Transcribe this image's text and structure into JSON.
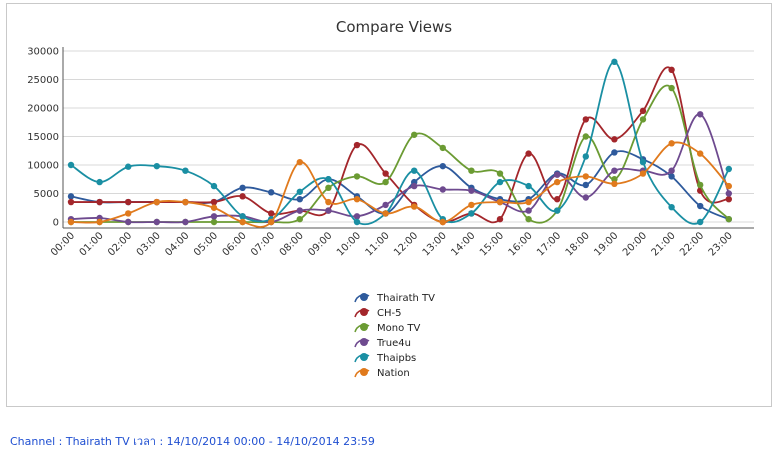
{
  "chart_data": {
    "type": "line",
    "title": "Compare Views",
    "categories": [
      "00:00",
      "01:00",
      "02:00",
      "03:00",
      "04:00",
      "05:00",
      "06:00",
      "07:00",
      "08:00",
      "09:00",
      "10:00",
      "11:00",
      "12:00",
      "13:00",
      "14:00",
      "15:00",
      "16:00",
      "17:00",
      "18:00",
      "19:00",
      "20:00",
      "21:00",
      "22:00",
      "23:00"
    ],
    "y_ticks": [
      0,
      5000,
      10000,
      15000,
      20000,
      25000,
      30000
    ],
    "ylim": [
      0,
      30000
    ],
    "grid": true,
    "legend_position": "bottom-center",
    "series": [
      {
        "name": "Thairath TV",
        "color": "#2e5a9c",
        "values": [
          4500,
          3500,
          3500,
          3500,
          3500,
          3500,
          6000,
          5200,
          4000,
          7500,
          4500,
          1500,
          7000,
          9800,
          6000,
          4000,
          4000,
          8500,
          6500,
          12200,
          11000,
          8000,
          2800,
          500
        ]
      },
      {
        "name": "CH-5",
        "color": "#a3262b",
        "values": [
          3500,
          3500,
          3500,
          3500,
          3500,
          3500,
          4500,
          1500,
          2000,
          2000,
          13500,
          8500,
          3000,
          0,
          1500,
          500,
          12000,
          4000,
          18000,
          14500,
          19500,
          26700,
          5500,
          4000
        ]
      },
      {
        "name": "Mono TV",
        "color": "#6b9b33",
        "values": [
          0,
          0,
          0,
          0,
          0,
          0,
          0,
          0,
          500,
          6000,
          8000,
          7000,
          15300,
          13000,
          9000,
          8500,
          500,
          2000,
          15000,
          7500,
          18000,
          23500,
          6500,
          500
        ]
      },
      {
        "name": "True4u",
        "color": "#6e4a8f",
        "values": [
          500,
          700,
          0,
          0,
          0,
          1000,
          1000,
          0,
          2000,
          2000,
          1000,
          3000,
          6300,
          5700,
          5500,
          3500,
          2000,
          8300,
          4300,
          9000,
          9000,
          9000,
          18900,
          5000
        ]
      },
      {
        "name": "Thaipbs",
        "color": "#1a8fa3",
        "values": [
          10000,
          7000,
          9700,
          9800,
          9000,
          6300,
          1000,
          500,
          5300,
          7500,
          0,
          1500,
          9000,
          500,
          1500,
          7000,
          6300,
          2000,
          11500,
          28100,
          10500,
          2600,
          0,
          9300
        ]
      },
      {
        "name": "Nation",
        "color": "#e07a1d",
        "values": [
          0,
          0,
          1500,
          3500,
          3500,
          2500,
          0,
          0,
          10500,
          3500,
          4000,
          1500,
          2700,
          0,
          3000,
          3500,
          3500,
          7000,
          8000,
          6700,
          8500,
          13800,
          12000,
          6300
        ]
      }
    ]
  },
  "footer": {
    "caption": "Channel : Thairath TV เวลา : 14/10/2014 00:00 - 14/10/2014 23:59"
  }
}
